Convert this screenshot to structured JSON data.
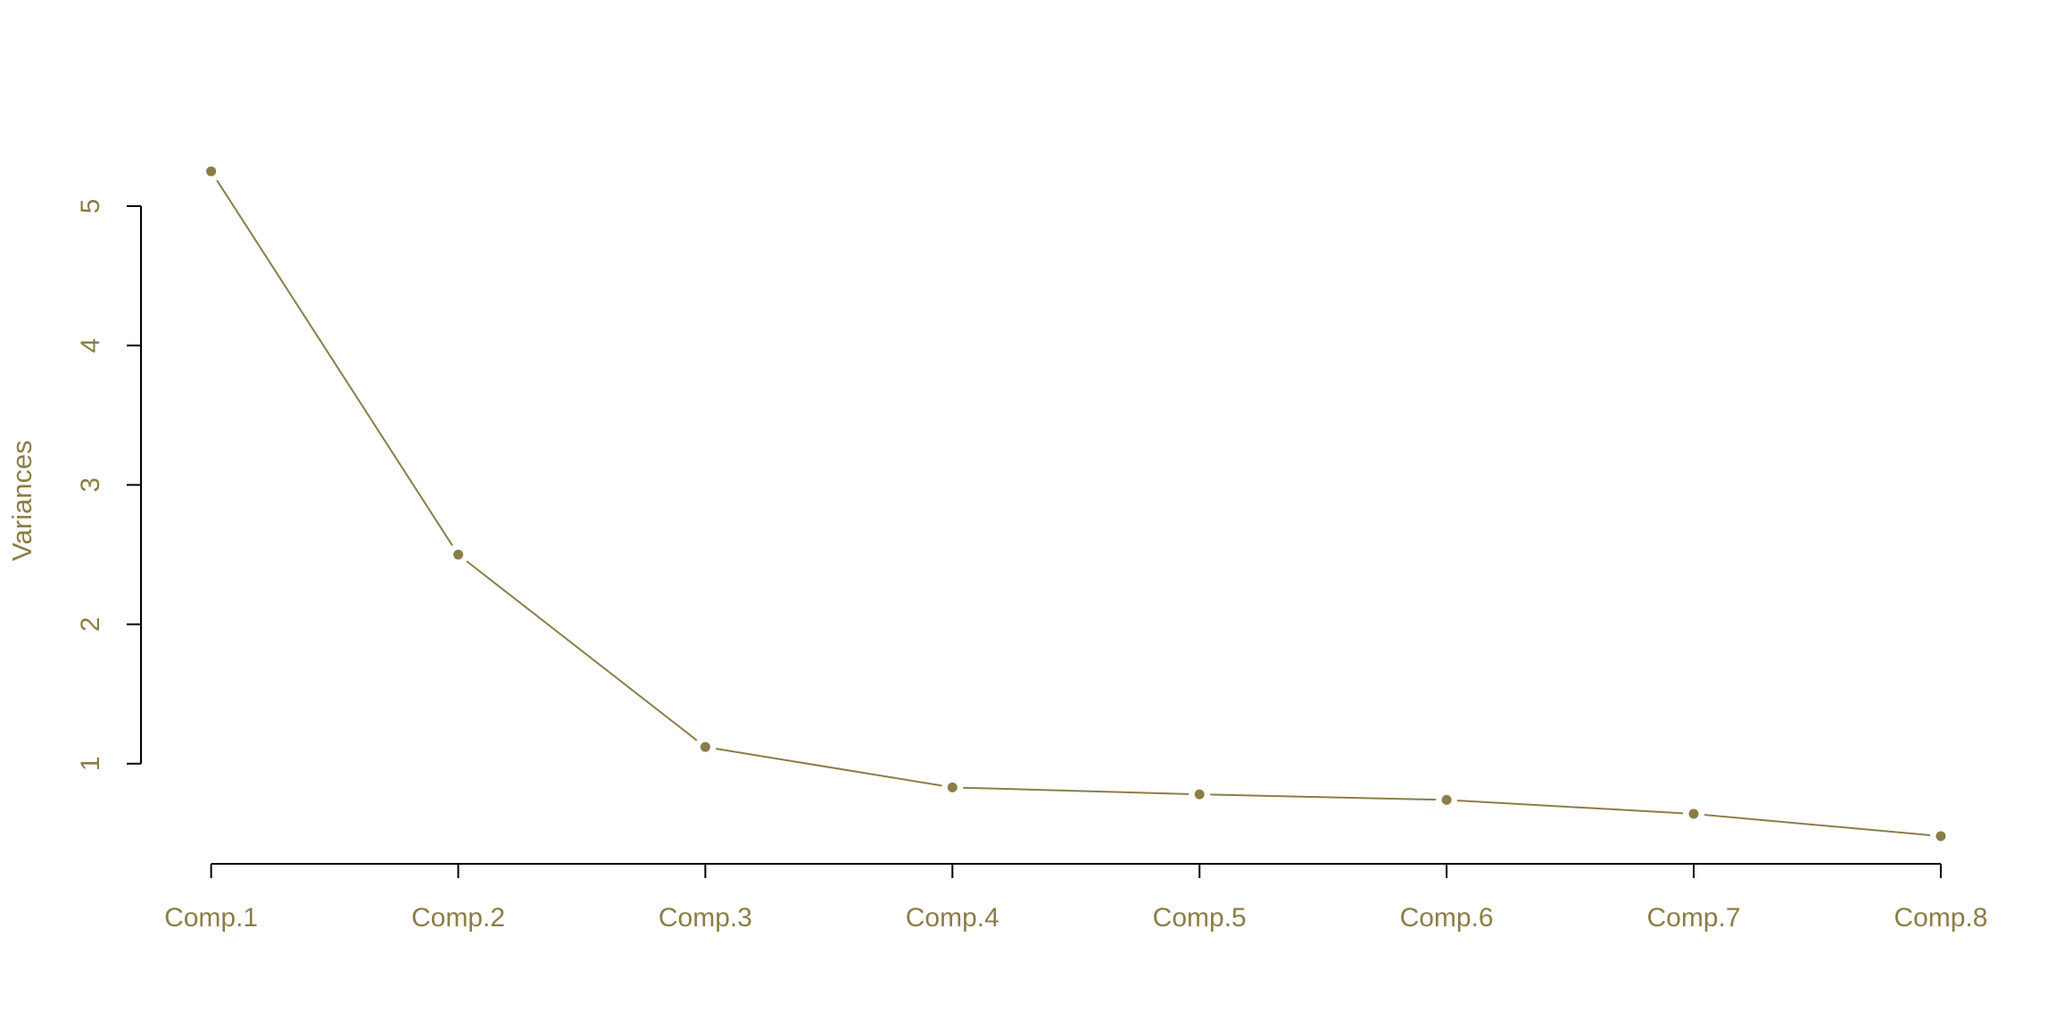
{
  "chart_data": {
    "type": "line",
    "title": "",
    "xlabel": "",
    "ylabel": "Variances",
    "categories": [
      "Comp.1",
      "Comp.2",
      "Comp.3",
      "Comp.4",
      "Comp.5",
      "Comp.6",
      "Comp.7",
      "Comp.8"
    ],
    "series": [
      {
        "values": [
          5.25,
          2.5,
          1.12,
          0.83,
          0.78,
          0.74,
          0.64,
          0.48
        ]
      }
    ],
    "y_ticks": [
      "1",
      "2",
      "3",
      "4",
      "5"
    ],
    "ylim": [
      0.3,
      5.5
    ],
    "grid": false,
    "legend": "none",
    "colors": {
      "series": "#8b7d46",
      "axis": "#000000",
      "text": "#8b7d46"
    }
  }
}
